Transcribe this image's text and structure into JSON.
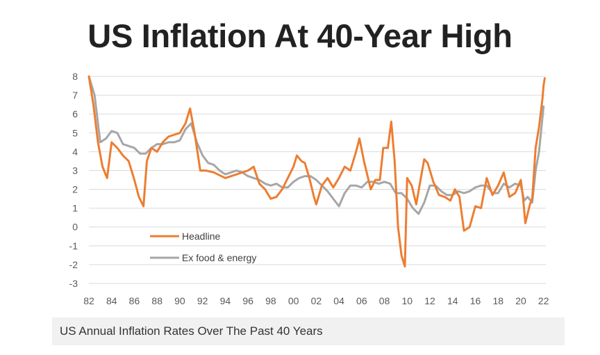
{
  "chart_data": {
    "type": "line",
    "title": "US Inflation At 40-Year High",
    "xlabel": "",
    "ylabel": "",
    "x_tick_labels": [
      "82",
      "84",
      "86",
      "88",
      "90",
      "92",
      "94",
      "96",
      "98",
      "00",
      "02",
      "04",
      "06",
      "08",
      "10",
      "12",
      "14",
      "16",
      "18",
      "20",
      "22"
    ],
    "y_tick_labels": [
      "8",
      "7",
      "6",
      "5",
      "4",
      "3",
      "2",
      "1",
      "0",
      "-1",
      "-2",
      "-3"
    ],
    "xlim": [
      1982,
      2022.2
    ],
    "ylim": [
      -3,
      8
    ],
    "grid": true,
    "legend_position": "bottom-left",
    "series": [
      {
        "name": "Headline",
        "color": "#ED7D31",
        "x": [
          1982.0,
          1982.4,
          1982.8,
          1983.2,
          1983.6,
          1984.0,
          1984.5,
          1985.0,
          1985.5,
          1986.0,
          1986.4,
          1986.8,
          1987.1,
          1987.5,
          1988.0,
          1988.5,
          1989.0,
          1989.5,
          1990.0,
          1990.5,
          1990.9,
          1991.3,
          1991.8,
          1992.3,
          1993.0,
          1994.0,
          1995.0,
          1996.0,
          1996.5,
          1997.0,
          1997.5,
          1998.0,
          1998.5,
          1999.0,
          1999.5,
          2000.0,
          2000.3,
          2000.7,
          2001.0,
          2001.4,
          2001.8,
          2002.0,
          2002.5,
          2003.0,
          2003.5,
          2004.0,
          2004.5,
          2005.0,
          2005.5,
          2005.8,
          2006.2,
          2006.8,
          2007.2,
          2007.6,
          2007.9,
          2008.3,
          2008.6,
          2008.9,
          2009.2,
          2009.5,
          2009.8,
          2010.0,
          2010.4,
          2010.8,
          2011.2,
          2011.5,
          2011.8,
          2012.3,
          2012.8,
          2013.3,
          2013.8,
          2014.2,
          2014.6,
          2015.0,
          2015.5,
          2016.0,
          2016.5,
          2017.0,
          2017.5,
          2018.0,
          2018.5,
          2019.0,
          2019.5,
          2020.0,
          2020.2,
          2020.4,
          2020.8,
          2021.0,
          2021.3,
          2021.6,
          2021.9,
          2022.0,
          2022.1
        ],
        "values": [
          8.2,
          6.5,
          4.5,
          3.2,
          2.6,
          4.5,
          4.2,
          3.8,
          3.5,
          2.5,
          1.6,
          1.1,
          3.5,
          4.2,
          4.0,
          4.5,
          4.8,
          4.9,
          5.0,
          5.5,
          6.3,
          5.0,
          3.0,
          3.0,
          2.9,
          2.6,
          2.8,
          3.0,
          3.2,
          2.3,
          2.0,
          1.5,
          1.6,
          2.0,
          2.6,
          3.2,
          3.8,
          3.5,
          3.4,
          2.6,
          1.6,
          1.2,
          2.2,
          2.6,
          2.1,
          2.6,
          3.2,
          3.0,
          4.0,
          4.7,
          3.5,
          2.0,
          2.5,
          2.5,
          4.2,
          4.2,
          5.6,
          3.5,
          0.0,
          -1.5,
          -2.1,
          2.6,
          2.2,
          1.2,
          2.6,
          3.6,
          3.4,
          2.4,
          1.7,
          1.6,
          1.4,
          2.0,
          1.6,
          -0.2,
          0.0,
          1.1,
          1.0,
          2.6,
          1.7,
          2.2,
          2.9,
          1.6,
          1.8,
          2.5,
          1.5,
          0.2,
          1.2,
          1.5,
          4.2,
          5.3,
          6.8,
          7.5,
          7.9
        ]
      },
      {
        "name": "Ex food & energy",
        "color": "#A6A6A6",
        "x": [
          1982.0,
          1982.5,
          1983.0,
          1983.5,
          1984.0,
          1984.5,
          1985.0,
          1985.5,
          1986.0,
          1986.5,
          1987.0,
          1987.5,
          1988.0,
          1988.5,
          1989.0,
          1989.5,
          1990.0,
          1990.5,
          1991.0,
          1991.5,
          1992.0,
          1992.5,
          1993.0,
          1993.5,
          1994.0,
          1994.5,
          1995.0,
          1995.5,
          1996.0,
          1996.5,
          1997.0,
          1997.5,
          1998.0,
          1998.5,
          1999.0,
          1999.5,
          2000.0,
          2000.5,
          2001.0,
          2001.5,
          2002.0,
          2002.5,
          2003.0,
          2003.5,
          2004.0,
          2004.5,
          2005.0,
          2005.5,
          2006.0,
          2006.5,
          2007.0,
          2007.5,
          2008.0,
          2008.5,
          2009.0,
          2009.5,
          2010.0,
          2010.5,
          2011.0,
          2011.5,
          2012.0,
          2012.5,
          2013.0,
          2013.5,
          2014.0,
          2014.5,
          2015.0,
          2015.5,
          2016.0,
          2016.5,
          2017.0,
          2017.5,
          2018.0,
          2018.5,
          2019.0,
          2019.5,
          2020.0,
          2020.3,
          2020.6,
          2021.0,
          2021.3,
          2021.6,
          2022.0
        ],
        "values": [
          8.3,
          7.0,
          4.5,
          4.7,
          5.1,
          5.0,
          4.4,
          4.3,
          4.2,
          3.9,
          3.9,
          4.2,
          4.4,
          4.4,
          4.5,
          4.5,
          4.6,
          5.2,
          5.5,
          4.5,
          3.8,
          3.4,
          3.3,
          3.0,
          2.8,
          2.9,
          3.0,
          2.9,
          2.7,
          2.6,
          2.5,
          2.3,
          2.2,
          2.3,
          2.1,
          2.1,
          2.4,
          2.6,
          2.7,
          2.7,
          2.5,
          2.2,
          1.9,
          1.5,
          1.1,
          1.8,
          2.2,
          2.2,
          2.1,
          2.4,
          2.4,
          2.3,
          2.4,
          2.3,
          1.8,
          1.8,
          1.5,
          1.0,
          0.7,
          1.3,
          2.2,
          2.2,
          1.9,
          1.7,
          1.7,
          1.9,
          1.8,
          1.9,
          2.1,
          2.2,
          2.2,
          1.8,
          1.8,
          2.3,
          2.1,
          2.3,
          2.2,
          1.4,
          1.6,
          1.3,
          3.0,
          4.0,
          6.4
        ]
      }
    ]
  },
  "caption": "US Annual Inflation Rates Over The Past 40 Years"
}
